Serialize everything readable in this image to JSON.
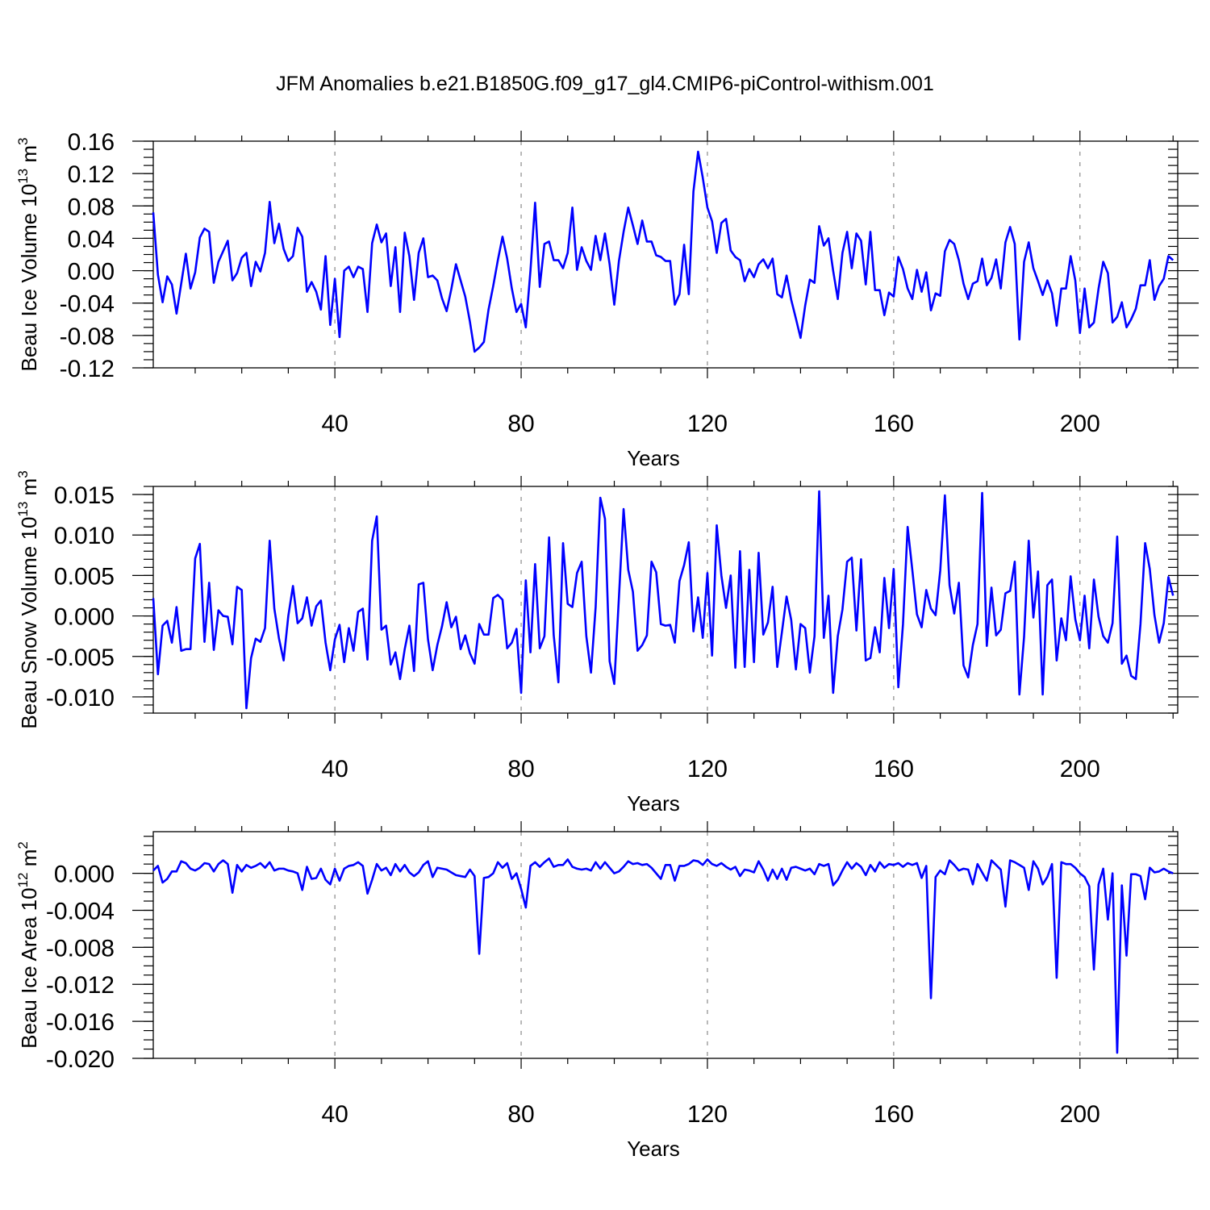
{
  "title": "JFM Anomalies b.e21.B1850G.f09_g17_gl4.CMIP6-piControl-withism.001",
  "chart_data": [
    {
      "type": "line",
      "title": "JFM Anomalies b.e21.B1850G.f09_g17_gl4.CMIP6-piControl-withism.001",
      "xlabel": "Years",
      "ylabel": "Beau Ice Volume 10",
      "ylabel_exp": "13",
      "ylabel_unit": " m",
      "ylabel_unit_exp": "3",
      "xlim": [
        1,
        221
      ],
      "ylim": [
        -0.12,
        0.16
      ],
      "xticks": [
        40,
        80,
        120,
        160,
        200
      ],
      "yticks": [
        -0.12,
        -0.08,
        -0.04,
        0.0,
        0.04,
        0.08,
        0.12,
        0.16
      ],
      "yticklabels": [
        "-0.12",
        "-0.08",
        "-0.04",
        "0.00",
        "0.04",
        "0.08",
        "0.12",
        "0.16"
      ],
      "ytick_minor_step": 0.01,
      "grid": "dashed vertical at major x ticks",
      "color": "#0000ff",
      "series": [
        {
          "x_start": 1,
          "values": [
            0.072,
            -0.005,
            -0.039,
            -0.007,
            -0.017,
            -0.053,
            -0.016,
            0.021,
            -0.022,
            -0.002,
            0.041,
            0.052,
            0.048,
            -0.015,
            0.011,
            0.024,
            0.037,
            -0.012,
            -0.003,
            0.016,
            0.022,
            -0.019,
            0.011,
            -0.001,
            0.022,
            0.085,
            0.034,
            0.058,
            0.027,
            0.012,
            0.018,
            0.053,
            0.042,
            -0.026,
            -0.014,
            -0.026,
            -0.048,
            0.018,
            -0.067,
            -0.01,
            -0.082,
            0.0,
            0.005,
            -0.008,
            0.005,
            0.002,
            -0.051,
            0.034,
            0.057,
            0.035,
            0.046,
            -0.019,
            0.029,
            -0.051,
            0.047,
            0.018,
            -0.036,
            0.022,
            0.04,
            -0.008,
            -0.006,
            -0.012,
            -0.034,
            -0.05,
            -0.023,
            0.008,
            -0.012,
            -0.032,
            -0.063,
            -0.1,
            -0.095,
            -0.088,
            -0.048,
            -0.019,
            0.013,
            0.042,
            0.015,
            -0.022,
            -0.051,
            -0.041,
            -0.07,
            0.0,
            0.084,
            -0.02,
            0.033,
            0.036,
            0.013,
            0.013,
            0.003,
            0.022,
            0.078,
            0.001,
            0.029,
            0.012,
            0.001,
            0.043,
            0.013,
            0.046,
            0.008,
            -0.042,
            0.012,
            0.048,
            0.078,
            0.056,
            0.033,
            0.062,
            0.036,
            0.036,
            0.019,
            0.017,
            0.012,
            0.012,
            -0.042,
            -0.029,
            0.032,
            -0.029,
            0.098,
            0.147,
            0.115,
            0.078,
            0.061,
            0.022,
            0.059,
            0.064,
            0.025,
            0.017,
            0.013,
            -0.013,
            0.002,
            -0.008,
            0.008,
            0.014,
            0.003,
            0.015,
            -0.029,
            -0.033,
            -0.006,
            -0.036,
            -0.059,
            -0.083,
            -0.043,
            -0.011,
            -0.015,
            0.055,
            0.031,
            0.04,
            0.0,
            -0.035,
            0.022,
            0.048,
            0.003,
            0.046,
            0.037,
            -0.017,
            0.048,
            -0.024,
            -0.024,
            -0.055,
            -0.027,
            -0.032,
            0.017,
            0.002,
            -0.022,
            -0.035,
            0.001,
            -0.026,
            -0.002,
            -0.049,
            -0.028,
            -0.031,
            0.024,
            0.038,
            0.033,
            0.013,
            -0.016,
            -0.035,
            -0.016,
            -0.013,
            0.015,
            -0.018,
            -0.009,
            0.014,
            -0.022,
            0.035,
            0.054,
            0.033,
            -0.085,
            0.011,
            0.035,
            0.003,
            -0.013,
            -0.03,
            -0.012,
            -0.028,
            -0.068,
            -0.022,
            -0.022,
            0.018,
            -0.012,
            -0.077,
            -0.022,
            -0.07,
            -0.064,
            -0.022,
            0.011,
            -0.003,
            -0.064,
            -0.057,
            -0.039,
            -0.07,
            -0.06,
            -0.047,
            -0.018,
            -0.018,
            0.013,
            -0.036,
            -0.019,
            -0.01,
            0.018,
            0.013
          ]
        }
      ]
    },
    {
      "type": "line",
      "xlabel": "Years",
      "ylabel": "Beau Snow Volume 10",
      "ylabel_exp": "13",
      "ylabel_unit": " m",
      "ylabel_unit_exp": "3",
      "xlim": [
        1,
        221
      ],
      "ylim": [
        -0.012,
        0.016
      ],
      "xticks": [
        40,
        80,
        120,
        160,
        200
      ],
      "yticks": [
        -0.01,
        -0.005,
        0.0,
        0.005,
        0.01,
        0.015
      ],
      "yticklabels": [
        "-0.010",
        "-0.005",
        "0.000",
        "0.005",
        "0.010",
        "0.015"
      ],
      "ytick_minor_step": 0.001,
      "grid": "dashed vertical at major x ticks",
      "color": "#0000ff",
      "series": [
        {
          "x_start": 1,
          "values": [
            0.0022,
            -0.0072,
            -0.0012,
            -0.0006,
            -0.0033,
            0.0011,
            -0.0043,
            -0.0041,
            -0.0041,
            0.0071,
            0.0089,
            -0.0032,
            0.0041,
            -0.0042,
            0.0007,
            0.0,
            -0.0001,
            -0.0035,
            0.0036,
            0.0032,
            -0.0114,
            -0.0052,
            -0.0028,
            -0.0032,
            -0.0015,
            0.0093,
            0.0009,
            -0.0028,
            -0.0055,
            0.0,
            0.0037,
            -0.0009,
            -0.0003,
            0.0023,
            -0.0012,
            0.0012,
            0.0019,
            -0.0033,
            -0.0067,
            -0.0029,
            -0.0011,
            -0.0057,
            -0.0015,
            -0.0043,
            0.0005,
            0.0009,
            -0.0054,
            0.0093,
            0.0123,
            -0.0017,
            -0.0012,
            -0.006,
            -0.0045,
            -0.0078,
            -0.0041,
            -0.0012,
            -0.0068,
            0.0039,
            0.0041,
            -0.0029,
            -0.0067,
            -0.0036,
            -0.0013,
            0.0017,
            -0.0014,
            -0.0001,
            -0.0041,
            -0.0024,
            -0.0046,
            -0.0059,
            -0.001,
            -0.0023,
            -0.0023,
            0.0022,
            0.0026,
            0.002,
            -0.004,
            -0.0033,
            -0.0016,
            -0.0095,
            0.0044,
            -0.0045,
            0.0064,
            -0.004,
            -0.0025,
            0.0097,
            -0.0024,
            -0.0082,
            0.009,
            0.0015,
            0.0011,
            0.0053,
            0.0067,
            -0.0025,
            -0.007,
            0.0011,
            0.0146,
            0.012,
            -0.0056,
            -0.0084,
            0.0023,
            0.0132,
            0.0057,
            0.003,
            -0.0043,
            -0.0036,
            -0.0024,
            0.0067,
            0.0054,
            -0.001,
            -0.0012,
            -0.0011,
            -0.0033,
            0.0043,
            0.0063,
            0.0091,
            -0.0019,
            0.0023,
            -0.0027,
            0.0053,
            -0.0049,
            0.0112,
            0.005,
            0.001,
            0.005,
            -0.0064,
            0.008,
            -0.0063,
            0.0057,
            -0.0057,
            0.0078,
            -0.0023,
            -0.0008,
            0.0036,
            -0.0063,
            -0.002,
            0.0024,
            -0.0005,
            -0.0066,
            -0.001,
            -0.0015,
            -0.007,
            -0.0025,
            0.0154,
            -0.0027,
            0.0025,
            -0.0095,
            -0.0025,
            0.0008,
            0.0067,
            0.0072,
            -0.0018,
            0.007,
            -0.0055,
            -0.0052,
            -0.0014,
            -0.0045,
            0.0047,
            -0.0015,
            0.0058,
            -0.0088,
            -0.001,
            0.011,
            0.0057,
            0.0002,
            -0.0014,
            0.0032,
            0.0009,
            0.0001,
            0.0056,
            0.0149,
            0.0038,
            0.0003,
            0.0041,
            -0.0061,
            -0.0076,
            -0.0036,
            -0.001,
            0.0152,
            -0.0037,
            0.0035,
            -0.0024,
            -0.0017,
            0.0028,
            0.0031,
            0.0067,
            -0.0097,
            -0.0026,
            0.0093,
            -0.0002,
            0.0055,
            -0.0097,
            0.0038,
            0.0045,
            -0.0055,
            -0.0003,
            -0.003,
            0.0049,
            -0.0004,
            -0.003,
            0.0025,
            -0.004,
            0.0045,
            -0.0001,
            -0.0025,
            -0.0033,
            -0.0009,
            0.0098,
            -0.0059,
            -0.0049,
            -0.0074,
            -0.0078,
            -0.001,
            0.009,
            0.0058,
            0.0001,
            -0.0033,
            -0.0009,
            0.0048,
            0.0025
          ]
        }
      ]
    },
    {
      "type": "line",
      "xlabel": "Years",
      "ylabel": "Beau Ice Area 10",
      "ylabel_exp": "12",
      "ylabel_unit": " m",
      "ylabel_unit_exp": "2",
      "xlim": [
        1,
        221
      ],
      "ylim": [
        -0.02,
        0.0045
      ],
      "xticks": [
        40,
        80,
        120,
        160,
        200
      ],
      "yticks": [
        -0.02,
        -0.016,
        -0.012,
        -0.008,
        -0.004,
        0.0
      ],
      "yticklabels": [
        "-0.020",
        "-0.016",
        "-0.012",
        "-0.008",
        "-0.004",
        "0.000"
      ],
      "ytick_minor_step": 0.001,
      "grid": "dashed vertical at major x ticks",
      "color": "#0000ff",
      "series": [
        {
          "x_start": 1,
          "values": [
            0.0003,
            0.0008,
            -0.001,
            -0.0006,
            0.0002,
            0.0002,
            0.0013,
            0.0011,
            0.0005,
            0.0003,
            0.0006,
            0.0011,
            0.001,
            0.0002,
            0.001,
            0.0014,
            0.001,
            -0.0021,
            0.0009,
            0.0002,
            0.0009,
            0.0006,
            0.0008,
            0.0011,
            0.0006,
            0.0012,
            0.0003,
            0.0005,
            0.0005,
            0.0003,
            0.0002,
            0.0,
            -0.0018,
            0.0007,
            -0.0006,
            -0.0005,
            0.0005,
            -0.0007,
            -0.0012,
            0.0005,
            -0.0008,
            0.0005,
            0.0008,
            0.0009,
            0.0012,
            0.0008,
            -0.0022,
            -0.0007,
            0.001,
            0.0003,
            0.0006,
            -0.0002,
            0.001,
            0.0002,
            0.0009,
            0.0001,
            -0.0003,
            0.0001,
            0.0009,
            0.0013,
            -0.0004,
            0.0006,
            0.0005,
            0.0004,
            0.0001,
            -0.0002,
            -0.0003,
            -0.0004,
            0.0004,
            -0.0003,
            -0.0087,
            -0.0005,
            -0.0004,
            0.0,
            0.0012,
            0.0006,
            0.0011,
            -0.0006,
            0.0,
            -0.0017,
            -0.0037,
            0.0008,
            0.0012,
            0.0007,
            0.0012,
            0.0016,
            0.0007,
            0.0009,
            0.0009,
            0.0015,
            0.0007,
            0.0005,
            0.0004,
            0.0005,
            0.0003,
            0.0012,
            0.0005,
            0.0012,
            0.0006,
            0.0,
            0.0002,
            0.0007,
            0.0013,
            0.001,
            0.0011,
            0.0009,
            0.001,
            0.0006,
            0.0,
            -0.0006,
            0.0009,
            0.0009,
            -0.0008,
            0.0008,
            0.0008,
            0.001,
            0.0014,
            0.0013,
            0.0009,
            0.0015,
            0.001,
            0.0008,
            0.0011,
            0.0007,
            0.0004,
            0.0007,
            -0.0003,
            0.0004,
            0.0003,
            0.0001,
            0.0013,
            0.0004,
            -0.0008,
            0.0004,
            -0.0006,
            0.0005,
            -0.0007,
            0.0006,
            0.0007,
            0.0005,
            0.0003,
            0.0005,
            -0.0001,
            0.001,
            0.0008,
            0.001,
            -0.0013,
            -0.0007,
            0.0003,
            0.0012,
            0.0005,
            0.0011,
            0.0007,
            -0.0002,
            0.0009,
            0.0002,
            0.0012,
            0.0006,
            0.001,
            0.0009,
            0.0011,
            0.0007,
            0.0011,
            0.0009,
            0.0011,
            -0.0005,
            0.0008,
            -0.0135,
            -0.0004,
            0.0003,
            -0.0001,
            0.0014,
            0.0009,
            0.0003,
            0.0005,
            0.0004,
            -0.0012,
            0.001,
            0.0001,
            -0.0008,
            0.0014,
            0.0009,
            0.0004,
            -0.0036,
            0.0014,
            0.0012,
            0.0009,
            0.0006,
            -0.0018,
            0.0013,
            0.0005,
            -0.0012,
            -0.0004,
            0.001,
            -0.0113,
            0.0012,
            0.001,
            0.001,
            0.0006,
            0.0,
            -0.0004,
            -0.0014,
            -0.0104,
            -0.0012,
            0.0005,
            -0.005,
            0.0,
            -0.0194,
            -0.0013,
            -0.0089,
            -0.0001,
            -0.0001,
            -0.0003,
            -0.0028,
            0.0006,
            0.0001,
            0.0002,
            0.0005,
            0.0002,
            0.0
          ]
        }
      ]
    }
  ]
}
